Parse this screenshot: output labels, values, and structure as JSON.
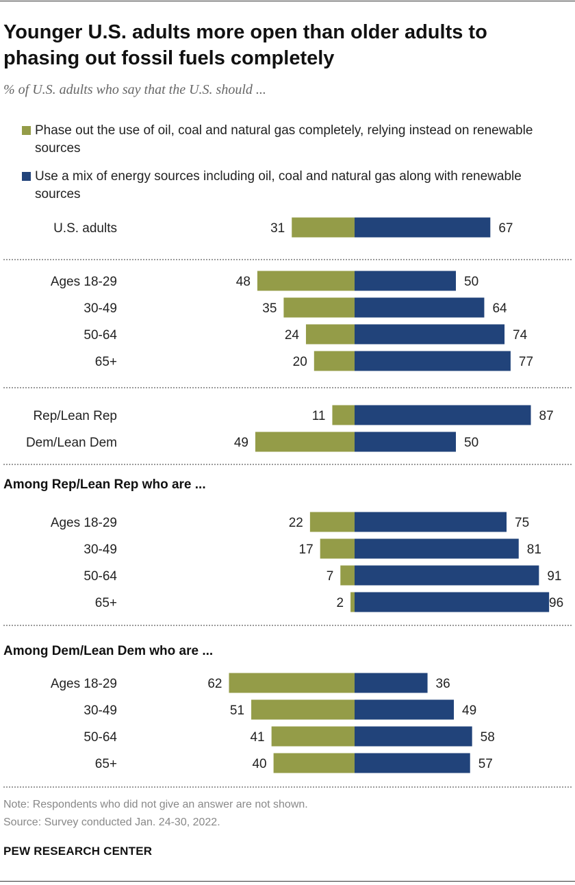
{
  "title": "Younger U.S. adults more open than older adults to phasing out fossil fuels completely",
  "subtitle": "% of U.S. adults who say that the U.S. should ...",
  "colors": {
    "phase_out": "#949c48",
    "mix": "#21437a"
  },
  "sections": {
    "rep_header": "Among Rep/Lean Rep who are ...",
    "dem_header": "Among Dem/Lean Dem who are ..."
  },
  "note": "Note: Respondents who did not give an answer are not shown.",
  "source": "Source: Survey conducted Jan. 24-30, 2022.",
  "brand": "PEW RESEARCH CENTER",
  "chart_data": {
    "type": "bar",
    "orientation": "horizontal-diverging",
    "legend": [
      "Phase out the use of oil, coal and natural gas completely, relying instead on renewable sources",
      "Use a mix of energy sources including oil, coal and natural gas along with renewable sources"
    ],
    "categories": [
      "U.S. adults",
      "Ages 18-29",
      "30-49",
      "50-64",
      "65+",
      "Rep/Lean Rep",
      "Dem/Lean Dem",
      "Ages 18-29",
      "30-49",
      "50-64",
      "65+",
      "Ages 18-29",
      "30-49",
      "50-64",
      "65+"
    ],
    "series": [
      {
        "name": "Phase out the use of oil, coal and natural gas completely, relying instead on renewable sources",
        "values": [
          31,
          48,
          35,
          24,
          20,
          11,
          49,
          22,
          17,
          7,
          2,
          62,
          51,
          41,
          40
        ]
      },
      {
        "name": "Use a mix of energy sources including oil, coal and natural gas along with renewable sources",
        "values": [
          67,
          50,
          64,
          74,
          77,
          87,
          50,
          75,
          81,
          91,
          96,
          36,
          49,
          58,
          57
        ]
      }
    ]
  }
}
